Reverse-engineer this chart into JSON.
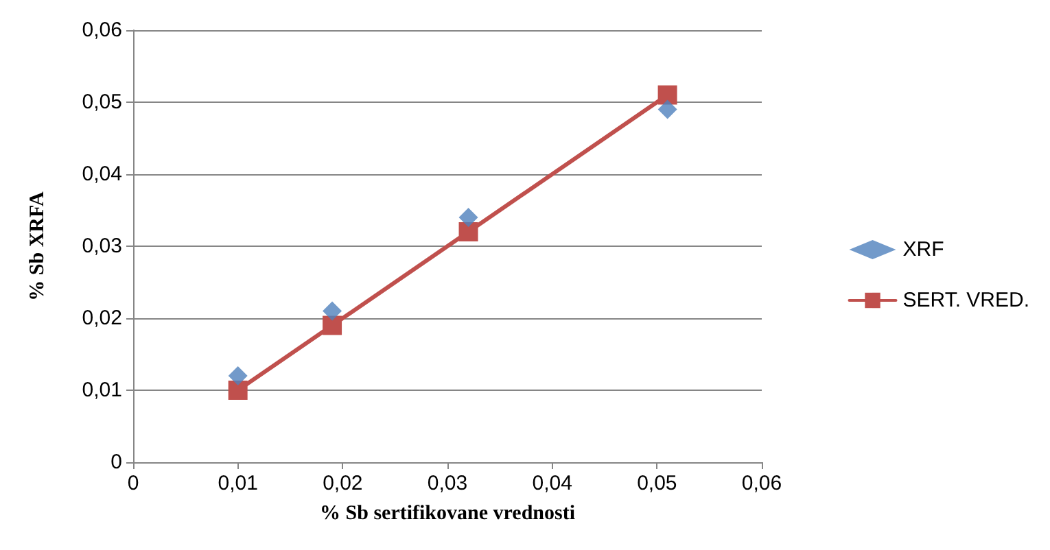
{
  "chart_data": {
    "type": "scatter",
    "xlabel": "% Sb sertifikovane vrednosti",
    "ylabel": "% Sb XRFA",
    "xlim": [
      0,
      0.06
    ],
    "ylim": [
      0,
      0.06
    ],
    "xticks": [
      0,
      {
        "value": 0.01,
        "label": "0,01"
      },
      {
        "value": 0.02,
        "label": "0,02"
      },
      {
        "value": 0.03,
        "label": "0,03"
      },
      {
        "value": 0.04,
        "label": "0,04"
      },
      {
        "value": 0.05,
        "label": "0,05"
      },
      {
        "value": 0.06,
        "label": "0,06"
      }
    ],
    "yticks": [
      0,
      {
        "value": 0.01,
        "label": "0,01"
      },
      {
        "value": 0.02,
        "label": "0,02"
      },
      {
        "value": 0.03,
        "label": "0,03"
      },
      {
        "value": 0.04,
        "label": "0,04"
      },
      {
        "value": 0.05,
        "label": "0,05"
      },
      {
        "value": 0.06,
        "label": "0,06"
      }
    ],
    "grid": "y",
    "legend": "right",
    "series": [
      {
        "name": "XRF",
        "marker": "diamond",
        "color": "#4f81bd",
        "x": [
          0.01,
          0.019,
          0.032,
          0.051
        ],
        "values": [
          0.012,
          0.021,
          0.034,
          0.049
        ]
      },
      {
        "name": "SERT. VRED.",
        "type": "line",
        "marker": "square",
        "line_style": "solid",
        "color": "#c0504d",
        "x": [
          0.01,
          0.019,
          0.032,
          0.051
        ],
        "values": [
          0.01,
          0.019,
          0.032,
          0.051
        ]
      }
    ]
  }
}
